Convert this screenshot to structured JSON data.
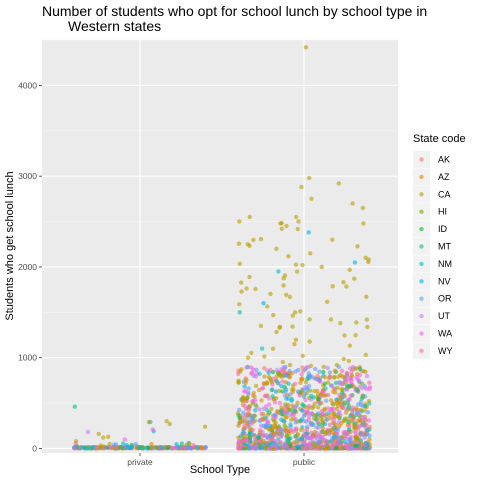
{
  "chart_data": {
    "type": "scatter",
    "title": "Number of students who opt for school lunch by school type in Western states",
    "title_lines": [
      "Number of students who opt for school lunch by school type in",
      "Western states"
    ],
    "xlabel": "School Type",
    "ylabel": "Students who get school lunch",
    "categories": [
      "private",
      "public"
    ],
    "ylim": [
      -50,
      4500
    ],
    "yticks": [
      0,
      1000,
      2000,
      3000,
      4000
    ],
    "grid": true,
    "jitter": true,
    "legend": {
      "title": "State code",
      "placement": "right",
      "entries": [
        {
          "code": "AK",
          "color": "#F8766D"
        },
        {
          "code": "AZ",
          "color": "#DE8C00"
        },
        {
          "code": "CA",
          "color": "#B79F00"
        },
        {
          "code": "HI",
          "color": "#7CAE00"
        },
        {
          "code": "ID",
          "color": "#00BA38"
        },
        {
          "code": "MT",
          "color": "#00C08B"
        },
        {
          "code": "NM",
          "color": "#00BFC4"
        },
        {
          "code": "NV",
          "color": "#00B4F0"
        },
        {
          "code": "OR",
          "color": "#619CFF"
        },
        {
          "code": "UT",
          "color": "#C77CFF"
        },
        {
          "code": "WA",
          "color": "#F564E3"
        },
        {
          "code": "WY",
          "color": "#FF64B0"
        }
      ]
    },
    "series": [
      {
        "name": "private",
        "points": [
          {
            "y": 290,
            "state": "NM"
          },
          {
            "y": 300,
            "state": "CA"
          },
          {
            "y": 460,
            "state": "MT"
          },
          {
            "y": 130,
            "state": "CA"
          },
          {
            "y": 160,
            "state": "CA"
          },
          {
            "y": 190,
            "state": "NV"
          },
          {
            "y": 210,
            "state": "WA"
          },
          {
            "y": 270,
            "state": "CA"
          },
          {
            "y": 290,
            "state": "CA"
          },
          {
            "y": 240,
            "state": "CA"
          },
          {
            "y": 180,
            "state": "UT"
          },
          {
            "y": 120,
            "state": "CA"
          },
          {
            "y": 100,
            "state": "WA"
          },
          {
            "y": 80,
            "state": "CA"
          },
          {
            "y": 60,
            "state": "NM"
          },
          {
            "y": 50,
            "state": "CA"
          },
          {
            "y": 40,
            "state": "OR"
          },
          {
            "y": 20,
            "state": "CA"
          }
        ]
      },
      {
        "name": "public",
        "points": [
          {
            "y": 4420,
            "state": "CA"
          },
          {
            "y": 2980,
            "state": "CA"
          },
          {
            "y": 2920,
            "state": "CA"
          },
          {
            "y": 2880,
            "state": "CA"
          },
          {
            "y": 2750,
            "state": "CA"
          },
          {
            "y": 2700,
            "state": "CA"
          },
          {
            "y": 2650,
            "state": "CA"
          },
          {
            "y": 2550,
            "state": "CA"
          },
          {
            "y": 2500,
            "state": "CA"
          },
          {
            "y": 2480,
            "state": "CA"
          },
          {
            "y": 2420,
            "state": "CA"
          },
          {
            "y": 2380,
            "state": "NV"
          },
          {
            "y": 2300,
            "state": "CA"
          },
          {
            "y": 2250,
            "state": "CA"
          },
          {
            "y": 2200,
            "state": "CA"
          },
          {
            "y": 2150,
            "state": "CA"
          },
          {
            "y": 2050,
            "state": "NV"
          },
          {
            "y": 2000,
            "state": "CA"
          },
          {
            "y": 1950,
            "state": "NM"
          },
          {
            "y": 1600,
            "state": "NV"
          },
          {
            "y": 1500,
            "state": "MT"
          },
          {
            "y": 1150,
            "state": "AZ"
          },
          {
            "y": 1100,
            "state": "NM"
          },
          {
            "y": 900,
            "state": "OR"
          }
        ]
      }
    ]
  }
}
